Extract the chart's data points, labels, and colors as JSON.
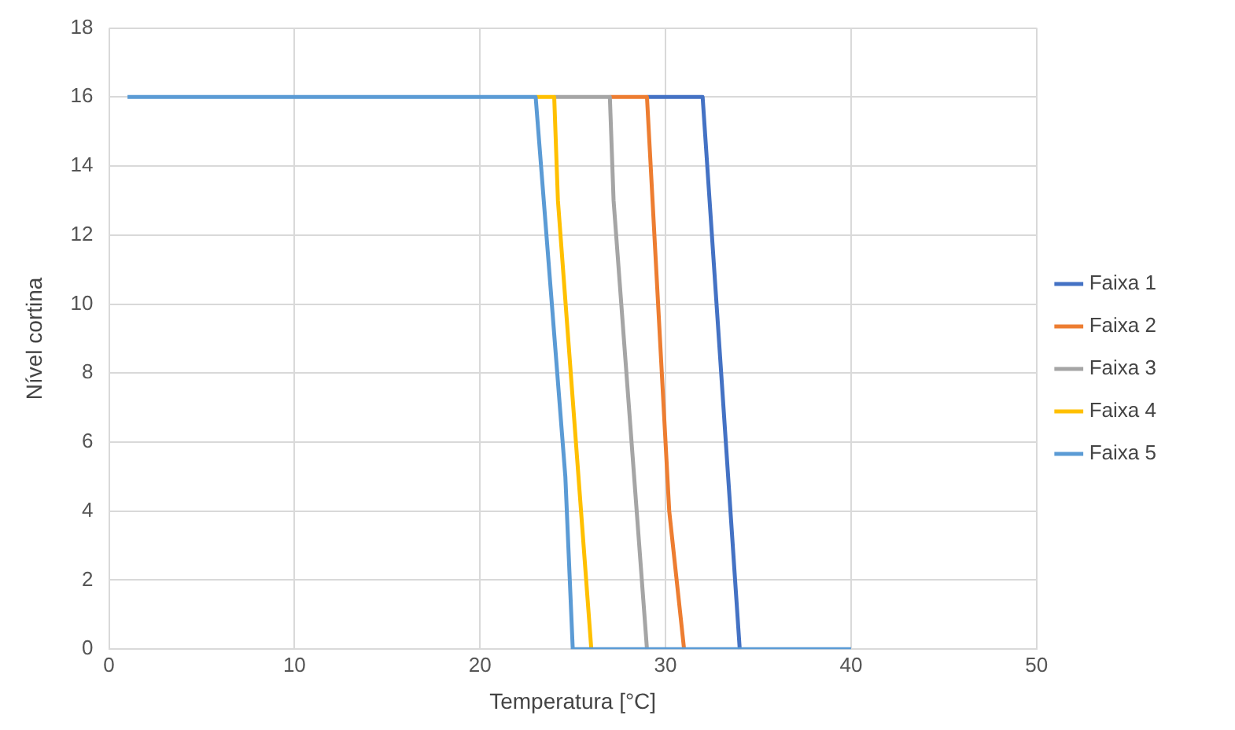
{
  "chart_data": {
    "type": "line",
    "xlabel": "Temperatura [°C]",
    "ylabel": "Nível cortina",
    "xlim": [
      0,
      50
    ],
    "xticks": [
      0,
      10,
      20,
      30,
      40,
      50
    ],
    "ylim": [
      0,
      18
    ],
    "yticks": [
      0,
      2,
      4,
      6,
      8,
      10,
      12,
      14,
      16,
      18
    ],
    "grid": true,
    "legend": "right",
    "marker": "none",
    "line_style": "solid",
    "series": [
      {
        "name": "Faixa 1",
        "color": "#4472c4",
        "x": [
          29,
          32,
          33.5,
          34
        ],
        "values": [
          16,
          16,
          4,
          0
        ]
      },
      {
        "name": "Faixa 2",
        "color": "#ed7d31",
        "x": [
          27,
          29,
          30.2,
          31
        ],
        "values": [
          16,
          16,
          4,
          0
        ]
      },
      {
        "name": "Faixa 3",
        "color": "#a5a5a5",
        "x": [
          24,
          27,
          27.2,
          29
        ],
        "values": [
          16,
          16,
          13,
          0
        ]
      },
      {
        "name": "Faixa 4",
        "color": "#ffc000",
        "x": [
          23,
          24,
          24.2,
          26
        ],
        "values": [
          16,
          16,
          13,
          0
        ]
      },
      {
        "name": "Faixa 5",
        "color": "#5b9bd5",
        "x": [
          1,
          23,
          24.6,
          25,
          40
        ],
        "values": [
          16,
          16,
          5,
          0,
          0
        ]
      }
    ]
  }
}
